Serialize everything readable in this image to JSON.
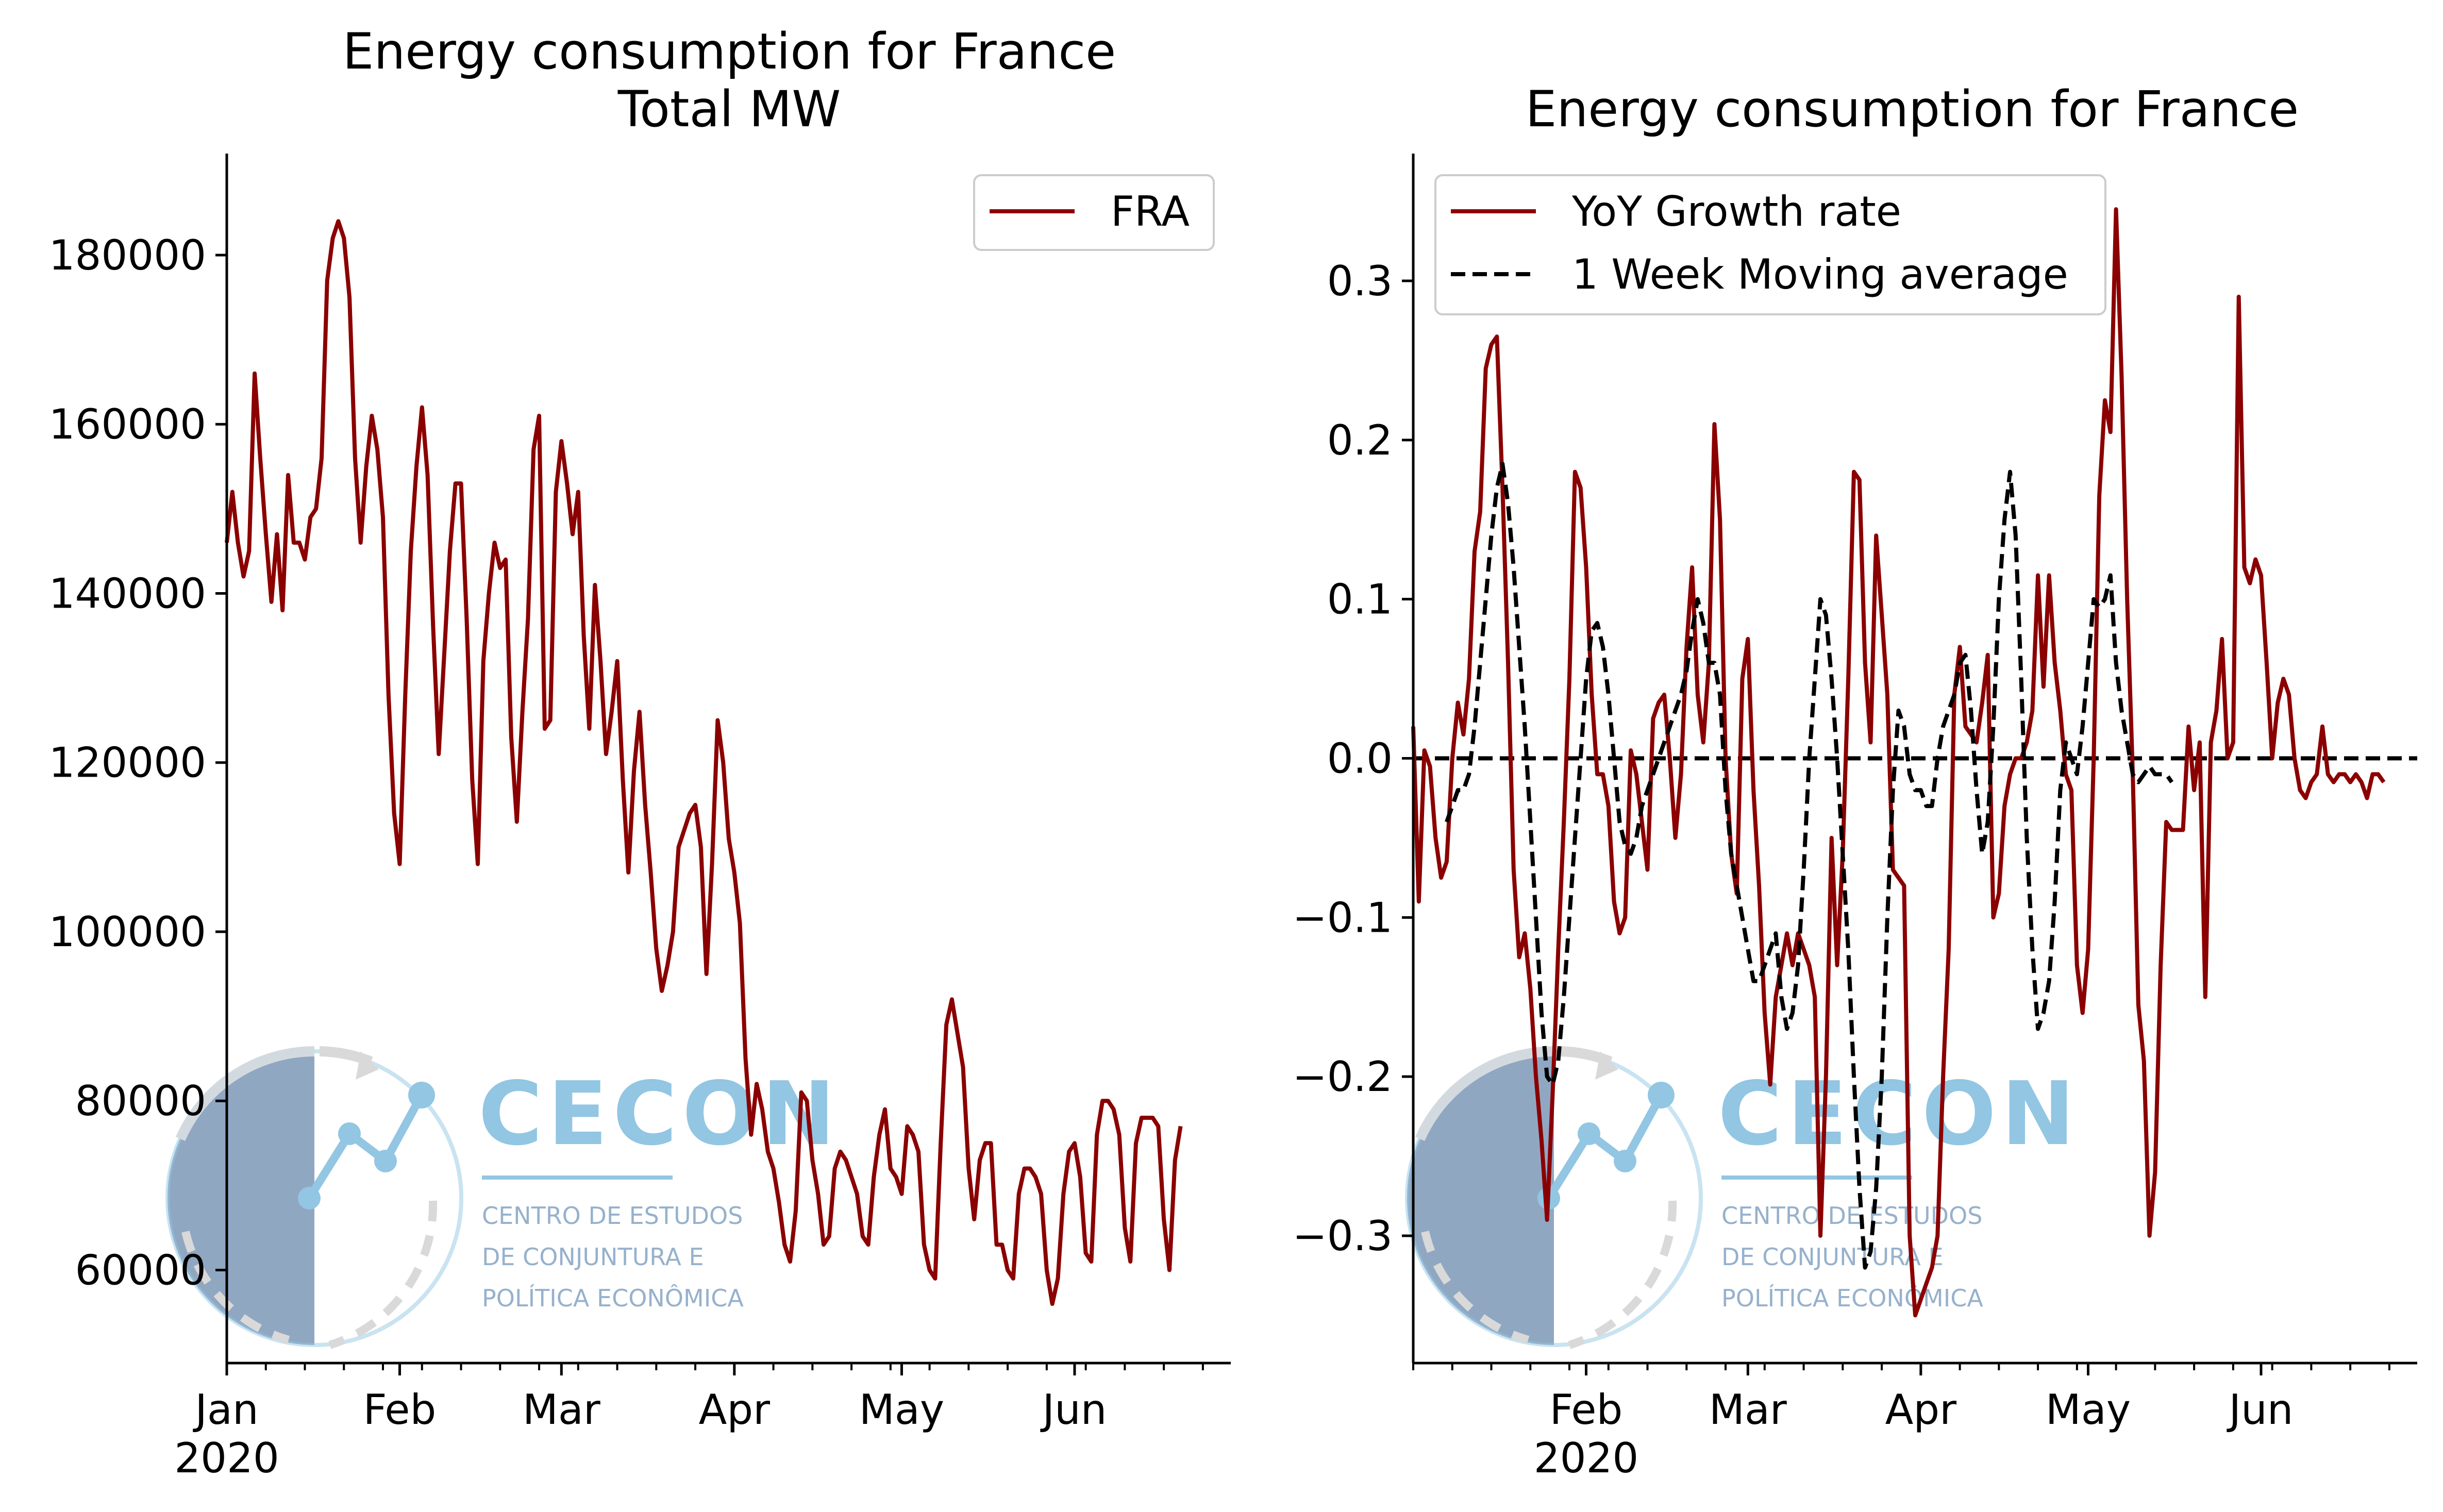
{
  "colors": {
    "series": "#8b0000",
    "moving_average": "#000000",
    "zero_line": "#000000",
    "logo_blue": "#87c0e0",
    "logo_dark": "#5b7ea5"
  },
  "logo": {
    "name": "CECON",
    "line1": "CENTRO DE ESTUDOS",
    "line2": "DE CONJUNTURA E",
    "line3": "POLÍTICA ECONÔMICA"
  },
  "chart_data": [
    {
      "type": "line",
      "title": "Energy consumption for France\nTotal MW",
      "title_lines": [
        "Energy consumption for France",
        "Total MW"
      ],
      "xlabel": "",
      "ylabel": "",
      "x_range": [
        "2020-01-01",
        "2020-06-30"
      ],
      "xlim_days": [
        0,
        180
      ],
      "ylim": [
        49000,
        192000
      ],
      "yticks": [
        60000,
        80000,
        100000,
        120000,
        140000,
        160000,
        180000
      ],
      "ytick_labels": [
        "60000",
        "80000",
        "100000",
        "120000",
        "140000",
        "160000",
        "180000"
      ],
      "xticks_major": [
        {
          "label": "Jan",
          "sublabel": "2020",
          "date": "2020-01-01"
        },
        {
          "label": "Feb",
          "sublabel": "",
          "date": "2020-02-01"
        },
        {
          "label": "Mar",
          "sublabel": "",
          "date": "2020-03-01"
        },
        {
          "label": "Apr",
          "sublabel": "",
          "date": "2020-04-01"
        },
        {
          "label": "May",
          "sublabel": "",
          "date": "2020-05-01"
        },
        {
          "label": "Jun",
          "sublabel": "",
          "date": "2020-06-01"
        }
      ],
      "legend": {
        "position": "upper right",
        "entries": [
          {
            "label": "FRA",
            "style": "solid"
          }
        ]
      },
      "grid": false,
      "series": [
        {
          "name": "FRA",
          "start_date": "2020-01-01",
          "values": [
            146000,
            152000,
            146000,
            142000,
            145000,
            166000,
            156000,
            147000,
            139000,
            147000,
            138000,
            154000,
            146000,
            146000,
            144000,
            149000,
            150000,
            156000,
            177000,
            182000,
            184000,
            182000,
            175000,
            156000,
            146000,
            155000,
            161000,
            157000,
            149000,
            128000,
            114000,
            108000,
            128000,
            145000,
            155000,
            162000,
            154000,
            136000,
            121000,
            133000,
            145000,
            153000,
            153000,
            137000,
            118000,
            108000,
            132000,
            140000,
            146000,
            143000,
            144000,
            123000,
            113000,
            126000,
            137000,
            157000,
            161000,
            124000,
            125000,
            152000,
            158000,
            153000,
            147000,
            152000,
            135000,
            124000,
            141000,
            132000,
            121000,
            126000,
            132000,
            118000,
            107000,
            119000,
            126000,
            115000,
            107000,
            98000,
            93000,
            96000,
            100000,
            110000,
            112000,
            114000,
            115000,
            110000,
            95000,
            108000,
            125000,
            120000,
            111000,
            107000,
            101000,
            85000,
            76000,
            82000,
            79000,
            74000,
            72000,
            68000,
            63000,
            61000,
            67000,
            81000,
            80000,
            73000,
            69000,
            63000,
            64000,
            72000,
            74000,
            73000,
            71000,
            69000,
            64000,
            63000,
            71000,
            76000,
            79000,
            72000,
            71000,
            69000,
            77000,
            76000,
            74000,
            63000,
            60000,
            59000,
            75000,
            89000,
            92000,
            88000,
            84000,
            72000,
            66000,
            73000,
            75000,
            75000,
            63000,
            63000,
            60000,
            59000,
            69000,
            72000,
            72000,
            71000,
            69000,
            60000,
            56000,
            59000,
            69000,
            74000,
            75000,
            71000,
            62000,
            61000,
            76000,
            80000,
            80000,
            79000,
            76000,
            65000,
            61000,
            75000,
            78000,
            78000,
            78000,
            77000,
            66000,
            60000,
            73000,
            77000
          ]
        }
      ]
    },
    {
      "type": "line",
      "title": "Energy consumption for France",
      "xlabel": "",
      "ylabel": "",
      "x_range": [
        "2020-01-01",
        "2020-06-30"
      ],
      "xlim_days": [
        0,
        180
      ],
      "ylim": [
        -0.38,
        0.38
      ],
      "yticks": [
        -0.3,
        -0.2,
        -0.1,
        0.0,
        0.1,
        0.2,
        0.3
      ],
      "ytick_labels": [
        "−0.3",
        "−0.2",
        "−0.1",
        "0.0",
        "0.1",
        "0.2",
        "0.3"
      ],
      "xticks_major": [
        {
          "label": "Feb",
          "sublabel": "2020",
          "date": "2020-02-01"
        },
        {
          "label": "Mar",
          "sublabel": "",
          "date": "2020-03-01"
        },
        {
          "label": "Apr",
          "sublabel": "",
          "date": "2020-04-01"
        },
        {
          "label": "May",
          "sublabel": "",
          "date": "2020-05-01"
        },
        {
          "label": "Jun",
          "sublabel": "",
          "date": "2020-06-01"
        }
      ],
      "legend": {
        "position": "upper left",
        "entries": [
          {
            "label": "YoY Growth rate",
            "style": "solid"
          },
          {
            "label": "1 Week Moving average",
            "style": "dashed"
          }
        ]
      },
      "reference_lines": [
        {
          "y": 0.0,
          "style": "dashed"
        }
      ],
      "grid": false,
      "series": [
        {
          "name": "YoY Growth rate",
          "start_date": "2020-01-01",
          "values": [
            0.02,
            -0.09,
            0.005,
            -0.005,
            -0.05,
            -0.075,
            -0.065,
            0.0,
            0.035,
            0.015,
            0.05,
            0.13,
            0.155,
            0.245,
            0.26,
            0.265,
            0.17,
            0.06,
            -0.07,
            -0.125,
            -0.11,
            -0.145,
            -0.2,
            -0.24,
            -0.29,
            -0.21,
            -0.12,
            -0.04,
            0.05,
            0.18,
            0.17,
            0.12,
            0.04,
            -0.01,
            -0.01,
            -0.03,
            -0.09,
            -0.11,
            -0.1,
            0.005,
            -0.01,
            -0.04,
            -0.07,
            0.025,
            0.035,
            0.04,
            0.0,
            -0.05,
            -0.01,
            0.07,
            0.12,
            0.04,
            0.01,
            0.06,
            0.21,
            0.15,
            0.0,
            -0.06,
            -0.085,
            0.05,
            0.075,
            -0.02,
            -0.08,
            -0.16,
            -0.205,
            -0.15,
            -0.13,
            -0.11,
            -0.13,
            -0.11,
            -0.12,
            -0.13,
            -0.15,
            -0.3,
            -0.2,
            -0.05,
            -0.13,
            -0.06,
            0.05,
            0.18,
            0.175,
            0.06,
            0.01,
            0.14,
            0.09,
            0.04,
            -0.07,
            -0.075,
            -0.08,
            -0.3,
            -0.35,
            -0.34,
            -0.33,
            -0.32,
            -0.3,
            -0.2,
            -0.12,
            0.04,
            0.07,
            0.02,
            0.015,
            0.01,
            0.035,
            0.065,
            -0.1,
            -0.085,
            -0.03,
            -0.01,
            0.0,
            0.0,
            0.01,
            0.03,
            0.115,
            0.045,
            0.115,
            0.06,
            0.03,
            -0.01,
            -0.02,
            -0.13,
            -0.16,
            -0.12,
            -0.0,
            0.165,
            0.225,
            0.205,
            0.345,
            0.24,
            0.1,
            -0.01,
            -0.155,
            -0.19,
            -0.3,
            -0.26,
            -0.13,
            -0.04,
            -0.045,
            -0.045,
            -0.045,
            0.02,
            -0.02,
            0.01,
            -0.15,
            0.01,
            0.03,
            0.075,
            0.0,
            0.01,
            0.29,
            0.12,
            0.11,
            0.125,
            0.115,
            0.06,
            0.0,
            0.035,
            0.05,
            0.04,
            0.0,
            -0.02,
            -0.025,
            -0.015,
            -0.01,
            0.02,
            -0.01,
            -0.015,
            -0.01,
            -0.01,
            -0.015,
            -0.01,
            -0.015,
            -0.025,
            -0.01,
            -0.01,
            -0.015
          ]
        },
        {
          "name": "1 Week Moving average",
          "start_date": "2020-01-01",
          "values": [
            null,
            null,
            null,
            null,
            null,
            null,
            -0.04,
            -0.03,
            -0.02,
            -0.02,
            -0.01,
            0.02,
            0.06,
            0.1,
            0.14,
            0.17,
            0.185,
            0.16,
            0.12,
            0.07,
            0.02,
            -0.04,
            -0.1,
            -0.16,
            -0.2,
            -0.205,
            -0.19,
            -0.15,
            -0.1,
            -0.05,
            0.0,
            0.05,
            0.08,
            0.085,
            0.07,
            0.04,
            0.0,
            -0.04,
            -0.055,
            -0.06,
            -0.05,
            -0.03,
            -0.02,
            -0.01,
            0.0,
            0.01,
            0.02,
            0.03,
            0.04,
            0.055,
            0.08,
            0.1,
            0.085,
            0.06,
            0.06,
            0.04,
            -0.02,
            -0.06,
            -0.08,
            -0.1,
            -0.12,
            -0.14,
            -0.14,
            -0.13,
            -0.12,
            -0.11,
            -0.15,
            -0.17,
            -0.16,
            -0.13,
            -0.07,
            0.0,
            0.05,
            0.1,
            0.09,
            0.05,
            0.0,
            -0.06,
            -0.12,
            -0.2,
            -0.27,
            -0.32,
            -0.31,
            -0.27,
            -0.2,
            -0.1,
            -0.02,
            0.03,
            0.02,
            -0.01,
            -0.02,
            -0.02,
            -0.03,
            -0.03,
            0.0,
            0.02,
            0.03,
            0.04,
            0.06,
            0.065,
            0.03,
            -0.02,
            -0.06,
            -0.04,
            0.02,
            0.1,
            0.15,
            0.18,
            0.14,
            0.05,
            -0.05,
            -0.12,
            -0.17,
            -0.16,
            -0.14,
            -0.09,
            -0.02,
            0.01,
            0.0,
            -0.01,
            0.02,
            0.06,
            0.1,
            0.095,
            0.1,
            0.115,
            0.06,
            0.03,
            0.01,
            -0.01,
            -0.015,
            -0.01,
            -0.005,
            -0.01,
            -0.01,
            -0.01,
            -0.015
          ]
        }
      ]
    }
  ]
}
